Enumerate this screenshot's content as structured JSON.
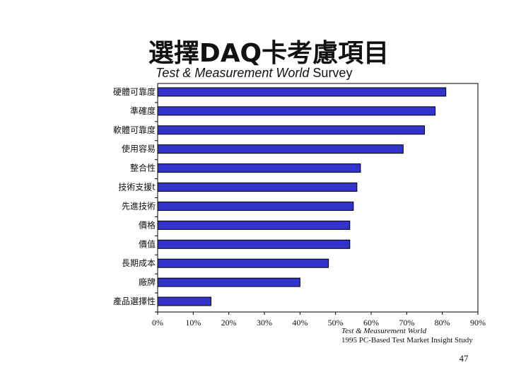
{
  "slide": {
    "title": "選擇DAQ卡考慮項目",
    "subtitle_italic": "Test & Measurement World",
    "subtitle_rest": " Survey",
    "source_line1": "Test & Measurement World",
    "source_line2": "1995 PC-Based Test Market Insight Study",
    "page_number": "47"
  },
  "chart_data": {
    "type": "bar",
    "orientation": "horizontal",
    "categories": [
      "硬體可靠度",
      "準確度",
      "軟體可靠度",
      "使用容易",
      "整合性",
      "技術支援t",
      "先進技術",
      "價格",
      "價值",
      "長期成本",
      "廠牌",
      "產品選擇性"
    ],
    "values": [
      0.81,
      0.78,
      0.75,
      0.69,
      0.57,
      0.56,
      0.55,
      0.54,
      0.54,
      0.48,
      0.4,
      0.15
    ],
    "xlim": [
      0,
      0.9
    ],
    "ticks": [
      "0%",
      "10%",
      "20%",
      "30%",
      "40%",
      "50%",
      "60%",
      "70%",
      "80%",
      "90%"
    ],
    "tick_values": [
      0,
      0.1,
      0.2,
      0.3,
      0.4,
      0.5,
      0.6,
      0.7,
      0.8,
      0.9
    ],
    "grid": false,
    "bar_color": "#3333cc",
    "bar_edge_color": "#000000"
  }
}
